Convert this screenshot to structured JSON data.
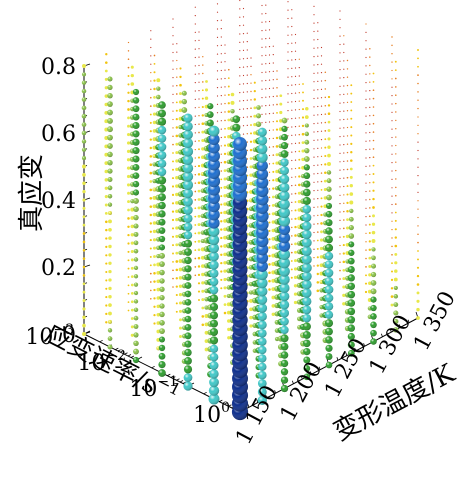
{
  "chart_data": {
    "type": "scatter",
    "subtype": "3d-bubble",
    "zlabel": "真应变",
    "ylabel_text": "应变速率/s",
    "ylabel_sup": "−1",
    "xlabel": "变形温度/K",
    "z_ticks": [
      "0.8",
      "0.6",
      "0.4",
      "0.2",
      "0"
    ],
    "z_tick_values": [
      0.8,
      0.6,
      0.4,
      0.2,
      0
    ],
    "y_ticks": [
      {
        "base": "10",
        "exp": "−3"
      },
      {
        "base": "10",
        "exp": "−2"
      },
      {
        "base": "10",
        "exp": "−1"
      },
      {
        "base": "10",
        "exp": "0"
      }
    ],
    "y_tick_values": [
      0.001,
      0.01,
      0.1,
      1
    ],
    "x_ticks": [
      "1 150",
      "1 200",
      "1 250",
      "1 300",
      "1 350"
    ],
    "x_tick_values": [
      1150,
      1200,
      1250,
      1300,
      1350
    ],
    "temperatures_K": [
      1150,
      1200,
      1250,
      1300,
      1350
    ],
    "strain_rates_s-1": [
      0.001,
      0.01,
      0.1,
      1
    ],
    "strain_range": [
      0,
      0.8
    ],
    "grid": false,
    "legend": "none",
    "colormap": [
      "#c0392b",
      "#e67e22",
      "#f1c40f",
      "#e8e84a",
      "#8bc34a",
      "#2e9e2e",
      "#40c8c8",
      "#1e6fd0",
      "#0d2e8c"
    ]
  }
}
